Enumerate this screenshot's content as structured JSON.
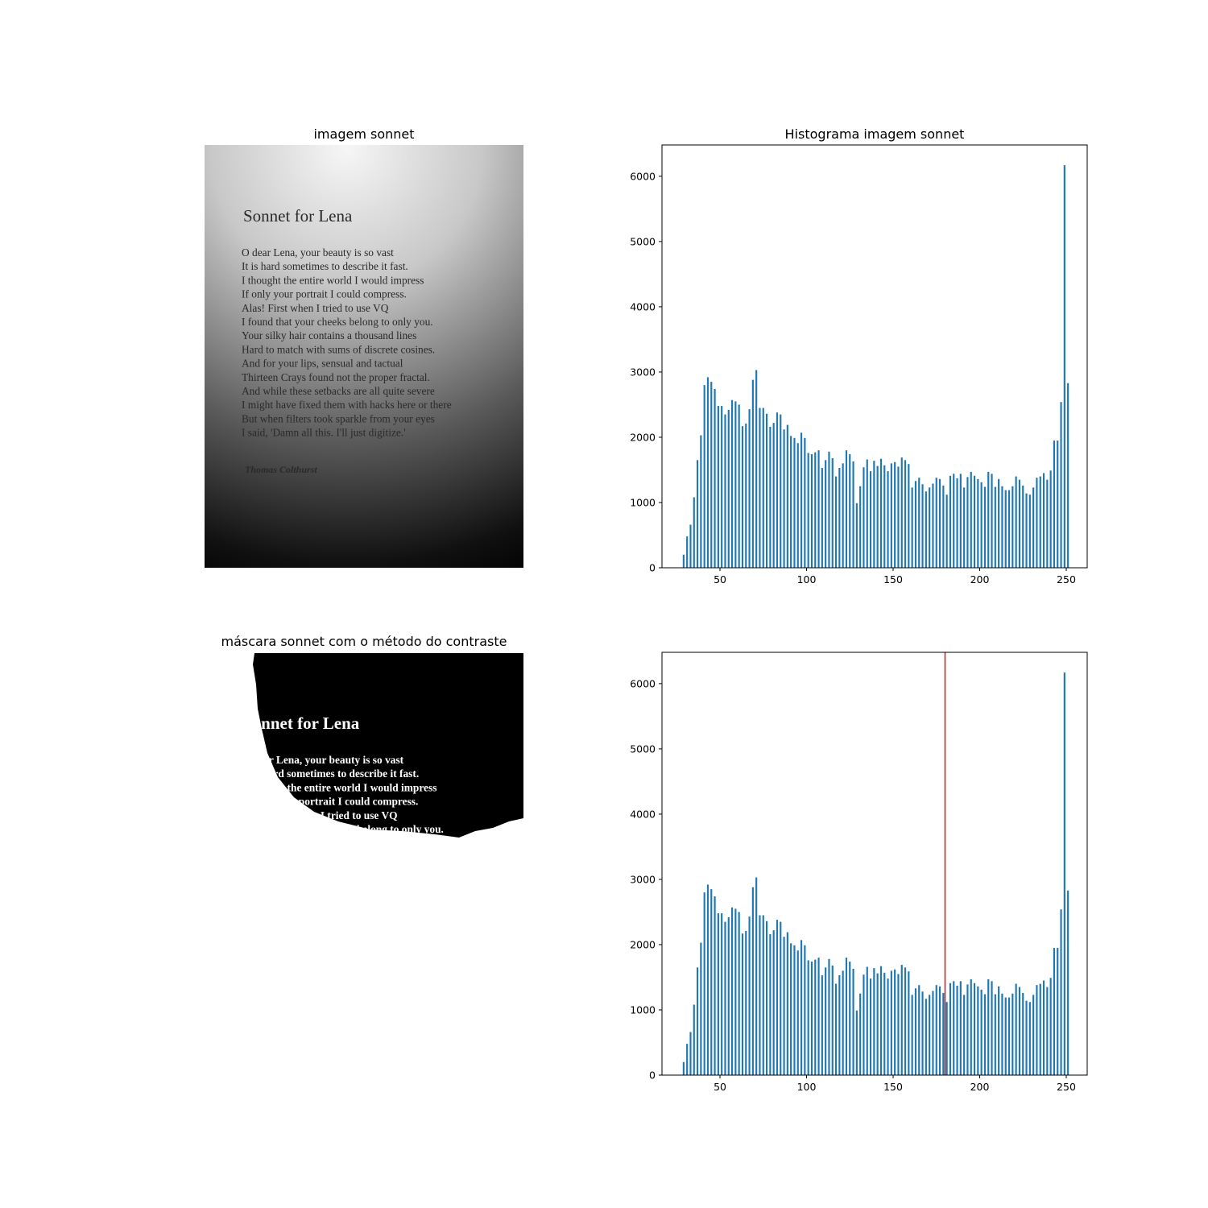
{
  "images": [
    {
      "title": "imagem sonnet",
      "heading": "Sonnet for Lena",
      "lines": [
        "O dear Lena, your beauty is so vast",
        "It is hard sometimes to describe it fast.",
        "I thought the entire world I would impress",
        "If only your portrait I could compress.",
        "Alas! First when I tried to use VQ",
        "I found that your cheeks belong to only you.",
        "Your silky hair contains a thousand lines",
        "Hard to match with sums of discrete cosines.",
        "And for your lips, sensual and tactual",
        "Thirteen Crays found not the proper fractal.",
        "And while these setbacks are all quite severe",
        "I might have fixed them with hacks here or there",
        "But when filters took sparkle from your eyes",
        "I said, 'Damn all this. I'll just digitize.'"
      ],
      "author": "Thomas Colthurst"
    },
    {
      "title": "máscara sonnet com o método do contraste"
    }
  ],
  "chart_data": [
    {
      "type": "bar",
      "title": "Histograma imagem sonnet",
      "color": "#1f77b4",
      "x": [
        29,
        31,
        33,
        35,
        37,
        39,
        41,
        43,
        45,
        47,
        49,
        51,
        53,
        55,
        57,
        59,
        61,
        63,
        65,
        67,
        69,
        71,
        73,
        75,
        77,
        79,
        81,
        83,
        85,
        87,
        89,
        91,
        93,
        95,
        97,
        99,
        101,
        103,
        105,
        107,
        109,
        111,
        113,
        115,
        117,
        119,
        121,
        123,
        125,
        127,
        129,
        131,
        133,
        135,
        137,
        139,
        141,
        143,
        145,
        147,
        149,
        151,
        153,
        155,
        157,
        159,
        161,
        163,
        165,
        167,
        169,
        171,
        173,
        175,
        177,
        179,
        181,
        183,
        185,
        187,
        189,
        191,
        193,
        195,
        197,
        199,
        201,
        203,
        205,
        207,
        209,
        211,
        213,
        215,
        217,
        219,
        221,
        223,
        225,
        227,
        229,
        231,
        233,
        235,
        237,
        239,
        241,
        243,
        245,
        247,
        249,
        251
      ],
      "values": [
        200,
        480,
        660,
        1080,
        1650,
        2030,
        2800,
        2920,
        2850,
        2740,
        2480,
        2480,
        2350,
        2420,
        2570,
        2550,
        2500,
        2170,
        2210,
        2430,
        2880,
        3030,
        2450,
        2450,
        2360,
        2160,
        2220,
        2380,
        2350,
        2120,
        2190,
        2020,
        1990,
        1910,
        2070,
        1990,
        1760,
        1740,
        1770,
        1800,
        1530,
        1650,
        1780,
        1680,
        1400,
        1530,
        1600,
        1800,
        1740,
        1630,
        990,
        1250,
        1540,
        1660,
        1480,
        1640,
        1560,
        1670,
        1570,
        1480,
        1600,
        1620,
        1550,
        1690,
        1650,
        1590,
        1230,
        1330,
        1380,
        1280,
        1170,
        1230,
        1290,
        1380,
        1360,
        1260,
        1120,
        1410,
        1440,
        1370,
        1440,
        1230,
        1390,
        1470,
        1410,
        1360,
        1310,
        1240,
        1470,
        1440,
        1240,
        1360,
        1250,
        1190,
        1190,
        1250,
        1400,
        1350,
        1260,
        1140,
        1120,
        1230,
        1380,
        1400,
        1450,
        1350,
        1490,
        1950,
        1950,
        2540,
        6170,
        2830
      ],
      "xlim": [
        16.5,
        262.1
      ],
      "ylim": [
        0,
        6480
      ],
      "xticks": [
        50,
        100,
        150,
        200,
        250
      ],
      "yticks": [
        0,
        1000,
        2000,
        3000,
        4000,
        5000,
        6000
      ]
    },
    {
      "type": "bar",
      "color": "#1f77b4",
      "x": [
        29,
        31,
        33,
        35,
        37,
        39,
        41,
        43,
        45,
        47,
        49,
        51,
        53,
        55,
        57,
        59,
        61,
        63,
        65,
        67,
        69,
        71,
        73,
        75,
        77,
        79,
        81,
        83,
        85,
        87,
        89,
        91,
        93,
        95,
        97,
        99,
        101,
        103,
        105,
        107,
        109,
        111,
        113,
        115,
        117,
        119,
        121,
        123,
        125,
        127,
        129,
        131,
        133,
        135,
        137,
        139,
        141,
        143,
        145,
        147,
        149,
        151,
        153,
        155,
        157,
        159,
        161,
        163,
        165,
        167,
        169,
        171,
        173,
        175,
        177,
        179,
        181,
        183,
        185,
        187,
        189,
        191,
        193,
        195,
        197,
        199,
        201,
        203,
        205,
        207,
        209,
        211,
        213,
        215,
        217,
        219,
        221,
        223,
        225,
        227,
        229,
        231,
        233,
        235,
        237,
        239,
        241,
        243,
        245,
        247,
        249,
        251
      ],
      "values": [
        200,
        480,
        660,
        1080,
        1650,
        2030,
        2800,
        2920,
        2850,
        2740,
        2480,
        2480,
        2350,
        2420,
        2570,
        2550,
        2500,
        2170,
        2210,
        2430,
        2880,
        3030,
        2450,
        2450,
        2360,
        2160,
        2220,
        2380,
        2350,
        2120,
        2190,
        2020,
        1990,
        1910,
        2070,
        1990,
        1760,
        1740,
        1770,
        1800,
        1530,
        1650,
        1780,
        1680,
        1400,
        1530,
        1600,
        1800,
        1740,
        1630,
        990,
        1250,
        1540,
        1660,
        1480,
        1640,
        1560,
        1670,
        1570,
        1480,
        1600,
        1620,
        1550,
        1690,
        1650,
        1590,
        1230,
        1330,
        1380,
        1280,
        1170,
        1230,
        1290,
        1380,
        1360,
        1260,
        1120,
        1410,
        1440,
        1370,
        1440,
        1230,
        1390,
        1470,
        1410,
        1360,
        1310,
        1240,
        1470,
        1440,
        1240,
        1360,
        1250,
        1190,
        1190,
        1250,
        1400,
        1350,
        1260,
        1140,
        1120,
        1230,
        1380,
        1400,
        1450,
        1350,
        1490,
        1950,
        1950,
        2540,
        6170,
        2830
      ],
      "xlim": [
        16.5,
        262.1
      ],
      "ylim": [
        0,
        6480
      ],
      "xticks": [
        50,
        100,
        150,
        200,
        250
      ],
      "yticks": [
        0,
        1000,
        2000,
        3000,
        4000,
        5000,
        6000
      ],
      "vline": {
        "x": 180,
        "color": "#d62728"
      }
    }
  ]
}
